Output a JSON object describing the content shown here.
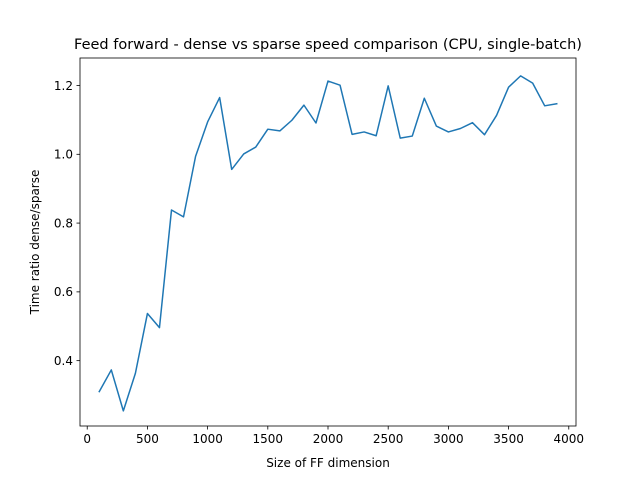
{
  "chart_data": {
    "type": "line",
    "title": "Feed forward - dense vs sparse speed comparison (CPU, single-batch)",
    "xlabel": "Size of FF dimension",
    "ylabel": "Time ratio dense/sparse",
    "xlim": [
      -60,
      4060
    ],
    "ylim": [
      0.21,
      1.28
    ],
    "xticks": [
      0,
      500,
      1000,
      1500,
      2000,
      2500,
      3000,
      3500,
      4000
    ],
    "yticks": [
      0.4,
      0.6,
      0.8,
      1.0,
      1.2
    ],
    "xtick_labels": [
      "0",
      "500",
      "1000",
      "1500",
      "2000",
      "2500",
      "3000",
      "3500",
      "4000"
    ],
    "ytick_labels": [
      "0.4",
      "0.6",
      "0.8",
      "1.0",
      "1.2"
    ],
    "grid": false,
    "legend": "none",
    "line_color": "#1f77b4",
    "series": [
      {
        "x": [
          100,
          200,
          300,
          400,
          500,
          600,
          700,
          800,
          900,
          1000,
          1100,
          1200,
          1300,
          1400,
          1500,
          1600,
          1700,
          1800,
          1900,
          2000,
          2100,
          2200,
          2300,
          2400,
          2500,
          2600,
          2700,
          2800,
          2900,
          3000,
          3100,
          3200,
          3300,
          3400,
          3500,
          3600,
          3700,
          3800,
          3900
        ],
        "values": [
          0.31,
          0.373,
          0.254,
          0.363,
          0.537,
          0.496,
          0.838,
          0.818,
          0.994,
          1.094,
          1.165,
          0.956,
          1.001,
          1.021,
          1.073,
          1.068,
          1.099,
          1.143,
          1.091,
          1.213,
          1.201,
          1.058,
          1.065,
          1.054,
          1.199,
          1.047,
          1.053,
          1.163,
          1.082,
          1.065,
          1.075,
          1.092,
          1.057,
          1.113,
          1.195,
          1.228,
          1.207,
          1.141,
          1.147
        ]
      }
    ]
  }
}
